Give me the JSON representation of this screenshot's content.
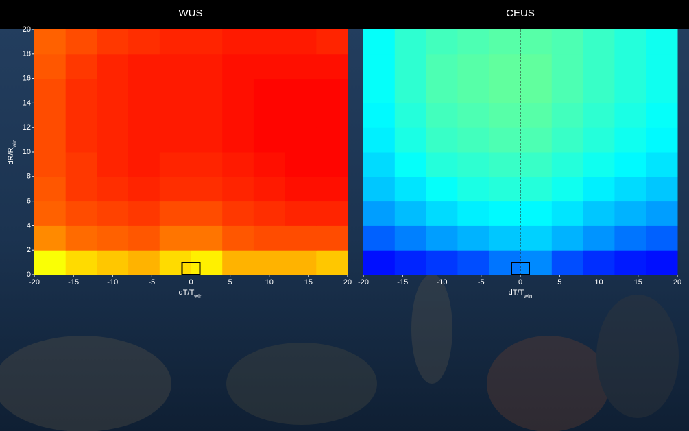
{
  "chart_data": [
    {
      "type": "heatmap",
      "title": "WUS",
      "x_label": "dT/T",
      "x_label_sub": "win",
      "y_label": "dR/R",
      "y_label_sub": "win",
      "colormap": "jet",
      "zlim": [
        0,
        1
      ],
      "xbins": [
        -20,
        -16,
        -12,
        -8,
        -4,
        0,
        4,
        8,
        12,
        16,
        20
      ],
      "ybins": [
        0,
        2,
        4,
        6,
        8,
        10,
        12,
        14,
        16,
        18,
        20
      ],
      "z": [
        [
          0.62,
          0.66,
          0.68,
          0.7,
          0.66,
          0.64,
          0.7,
          0.7,
          0.7,
          0.68
        ],
        [
          0.74,
          0.77,
          0.78,
          0.79,
          0.76,
          0.76,
          0.79,
          0.8,
          0.8,
          0.8
        ],
        [
          0.78,
          0.8,
          0.81,
          0.82,
          0.8,
          0.8,
          0.82,
          0.83,
          0.84,
          0.84
        ],
        [
          0.79,
          0.82,
          0.83,
          0.84,
          0.83,
          0.83,
          0.84,
          0.85,
          0.86,
          0.86
        ],
        [
          0.8,
          0.82,
          0.84,
          0.85,
          0.84,
          0.84,
          0.85,
          0.86,
          0.87,
          0.87
        ],
        [
          0.8,
          0.83,
          0.84,
          0.85,
          0.85,
          0.85,
          0.86,
          0.87,
          0.87,
          0.87
        ],
        [
          0.8,
          0.83,
          0.84,
          0.85,
          0.85,
          0.85,
          0.86,
          0.87,
          0.87,
          0.87
        ],
        [
          0.8,
          0.83,
          0.84,
          0.85,
          0.85,
          0.85,
          0.86,
          0.87,
          0.87,
          0.87
        ],
        [
          0.79,
          0.82,
          0.84,
          0.85,
          0.85,
          0.85,
          0.86,
          0.86,
          0.86,
          0.86
        ],
        [
          0.78,
          0.8,
          0.82,
          0.83,
          0.84,
          0.84,
          0.85,
          0.85,
          0.85,
          0.84
        ]
      ],
      "xlim": [
        -20,
        20
      ],
      "ylim": [
        0,
        20
      ],
      "xticks": [
        -20,
        -15,
        -10,
        -5,
        0,
        5,
        10,
        15,
        20
      ],
      "yticks": [
        0,
        2,
        4,
        6,
        8,
        10,
        12,
        14,
        16,
        18,
        20
      ]
    },
    {
      "type": "heatmap",
      "title": "CEUS",
      "x_label": "dT/T",
      "x_label_sub": "win",
      "colormap": "jet",
      "zlim": [
        0,
        1
      ],
      "xbins": [
        -20,
        -16,
        -12,
        -8,
        -4,
        0,
        4,
        8,
        12,
        16,
        20
      ],
      "ybins": [
        0,
        2,
        4,
        6,
        8,
        10,
        12,
        14,
        16,
        18,
        20
      ],
      "z": [
        [
          0.14,
          0.16,
          0.18,
          0.2,
          0.24,
          0.26,
          0.2,
          0.17,
          0.15,
          0.14
        ],
        [
          0.22,
          0.25,
          0.28,
          0.3,
          0.32,
          0.33,
          0.3,
          0.27,
          0.24,
          0.22
        ],
        [
          0.28,
          0.31,
          0.34,
          0.36,
          0.37,
          0.37,
          0.35,
          0.32,
          0.3,
          0.28
        ],
        [
          0.32,
          0.35,
          0.38,
          0.4,
          0.41,
          0.41,
          0.39,
          0.36,
          0.34,
          0.32
        ],
        [
          0.34,
          0.38,
          0.41,
          0.42,
          0.43,
          0.43,
          0.41,
          0.39,
          0.37,
          0.35
        ],
        [
          0.36,
          0.4,
          0.43,
          0.44,
          0.45,
          0.45,
          0.43,
          0.41,
          0.39,
          0.37
        ],
        [
          0.37,
          0.41,
          0.44,
          0.45,
          0.46,
          0.46,
          0.44,
          0.42,
          0.4,
          0.38
        ],
        [
          0.38,
          0.42,
          0.45,
          0.46,
          0.47,
          0.47,
          0.45,
          0.43,
          0.41,
          0.39
        ],
        [
          0.38,
          0.42,
          0.45,
          0.46,
          0.47,
          0.47,
          0.45,
          0.43,
          0.41,
          0.39
        ],
        [
          0.38,
          0.42,
          0.44,
          0.45,
          0.46,
          0.46,
          0.45,
          0.43,
          0.41,
          0.39
        ]
      ],
      "xlim": [
        -20,
        20
      ],
      "ylim": [
        0,
        20
      ],
      "xticks": [
        -20,
        -15,
        -10,
        -5,
        0,
        5,
        10,
        15,
        20
      ]
    }
  ]
}
